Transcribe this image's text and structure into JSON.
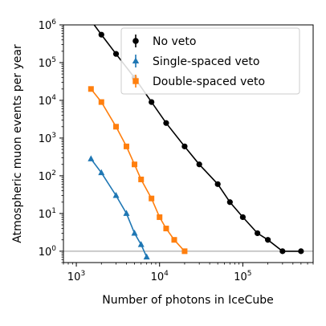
{
  "chart_data": {
    "type": "scatter",
    "title": "",
    "xlabel": "Number of photons in IceCube",
    "ylabel": "Atmospheric muon events per year",
    "xscale": "log",
    "yscale": "log",
    "xlim": [
      700,
      700000
    ],
    "ylim": [
      0.5,
      1000000
    ],
    "x_ticks": [
      {
        "value": 1000,
        "base": "10",
        "exp": "3"
      },
      {
        "value": 10000,
        "base": "10",
        "exp": "4"
      },
      {
        "value": 100000,
        "base": "10",
        "exp": "5"
      }
    ],
    "y_ticks": [
      {
        "value": 1,
        "base": "10",
        "exp": "0"
      },
      {
        "value": 10,
        "base": "10",
        "exp": "1"
      },
      {
        "value": 100,
        "base": "10",
        "exp": "2"
      },
      {
        "value": 1000,
        "base": "10",
        "exp": "3"
      },
      {
        "value": 10000,
        "base": "10",
        "exp": "4"
      },
      {
        "value": 100000,
        "base": "10",
        "exp": "5"
      },
      {
        "value": 1000000,
        "base": "10",
        "exp": "6"
      }
    ],
    "reference_line_y": 1,
    "grid": false,
    "legend_position": "top-right",
    "series": [
      {
        "name": "No veto",
        "color": "#000000",
        "marker": "circle",
        "x": [
          1500,
          2000,
          3000,
          5000,
          8000,
          12000,
          20000,
          30000,
          50000,
          70000,
          100000,
          150000,
          200000,
          300000,
          500000
        ],
        "y": [
          1300000,
          550000,
          170000,
          40000,
          9000,
          2500,
          600,
          200,
          60,
          20,
          8,
          3,
          2,
          1,
          1
        ]
      },
      {
        "name": "Single-spaced veto",
        "color": "#1f77b4",
        "marker": "triangle",
        "x": [
          1500,
          2000,
          3000,
          4000,
          5000,
          6000,
          7000
        ],
        "y": [
          280,
          120,
          30,
          10,
          3,
          1.5,
          0.7
        ]
      },
      {
        "name": "Double-spaced veto",
        "color": "#ff7f0e",
        "marker": "square",
        "x": [
          1500,
          2000,
          3000,
          4000,
          5000,
          6000,
          8000,
          10000,
          12000,
          15000,
          20000
        ],
        "y": [
          20000,
          9000,
          2000,
          600,
          200,
          80,
          25,
          8,
          4,
          2,
          1
        ]
      }
    ]
  }
}
